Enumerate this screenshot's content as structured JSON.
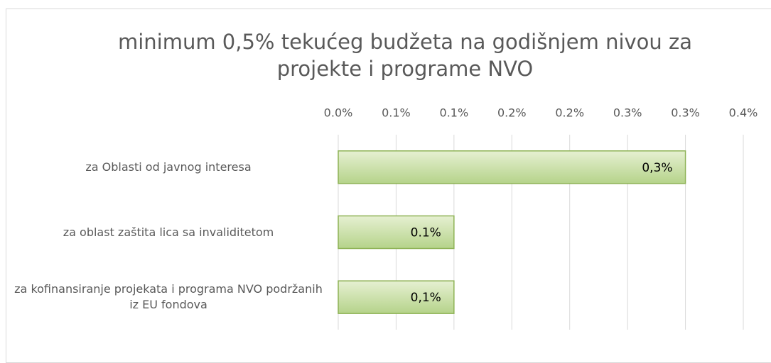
{
  "chart_data": {
    "type": "bar",
    "orientation": "horizontal",
    "title": "minimum 0,5% tekućeg budžeta na godišnjem nivou za projekte i programe NVO",
    "categories": [
      "za Oblasti od javnog interesa",
      "za oblast zaštita lica sa invaliditetom",
      "za kofinansiranje projekata i programa NVO podržanih iz EU fondova"
    ],
    "values": [
      0.3,
      0.1,
      0.1
    ],
    "value_labels": [
      "0,3%",
      "0.1%",
      "0,1%"
    ],
    "color": "#c4dc9c",
    "xlim": [
      0,
      0.35
    ],
    "xticks": [
      {
        "value": 0,
        "label": "0.0%"
      },
      {
        "value": 0.05,
        "label": "0.1%"
      },
      {
        "value": 0.1,
        "label": "0.1%"
      },
      {
        "value": 0.15,
        "label": "0.2%"
      },
      {
        "value": 0.2,
        "label": "0.2%"
      },
      {
        "value": 0.25,
        "label": "0.3%"
      },
      {
        "value": 0.3,
        "label": "0.3%"
      },
      {
        "value": 0.35,
        "label": "0.4%"
      }
    ],
    "grid": true
  }
}
